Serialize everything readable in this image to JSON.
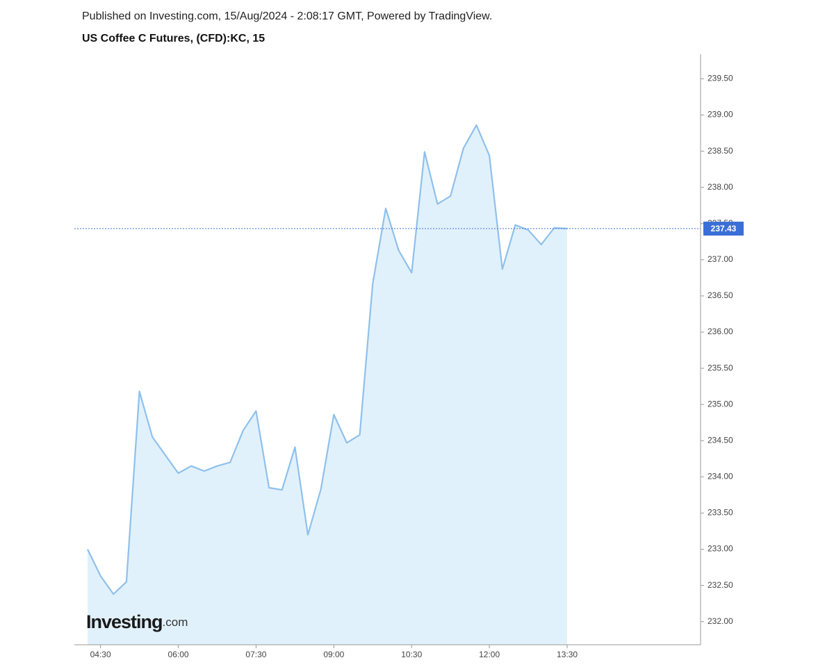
{
  "header": "Published on Investing.com, 15/Aug/2024 - 2:08:17 GMT, Powered by TradingView.",
  "chart_data": {
    "type": "line",
    "title": "US Coffee C Futures, (CFD):KC, 15",
    "logo": "Investing",
    "logo_suffix": ".com",
    "categories": [
      null,
      "04:30",
      null,
      null,
      null,
      null,
      null,
      "06:00",
      null,
      null,
      null,
      null,
      null,
      "07:30",
      null,
      null,
      null,
      null,
      null,
      "09:00",
      null,
      null,
      null,
      null,
      null,
      "10:30",
      null,
      null,
      null,
      null,
      null,
      "12:00",
      null,
      null,
      null,
      null,
      null,
      "13:30"
    ],
    "series": [
      {
        "name": "KC",
        "color": "#8ec0ec",
        "fill": "#e1f1fb",
        "values": [
          233.0,
          232.63,
          232.38,
          232.55,
          235.18,
          234.55,
          234.3,
          234.05,
          234.15,
          234.08,
          234.15,
          234.2,
          234.64,
          234.91,
          233.85,
          233.82,
          234.41,
          233.2,
          233.83,
          234.86,
          234.47,
          234.58,
          236.67,
          237.71,
          237.13,
          236.82,
          238.49,
          237.77,
          237.88,
          238.54,
          238.86,
          238.44,
          236.87,
          237.48,
          237.41,
          237.21,
          237.44,
          237.43
        ]
      }
    ],
    "price_line": {
      "value": 237.43,
      "label": "237.43",
      "color": "#3b6fd8"
    },
    "ylim": [
      231.68,
      239.84
    ],
    "yticks": [
      {
        "value": 232,
        "label": "232.00"
      },
      {
        "value": 232.5,
        "label": "232.50"
      },
      {
        "value": 233,
        "label": "233.00"
      },
      {
        "value": 233.5,
        "label": "233.50"
      },
      {
        "value": 234,
        "label": "234.00"
      },
      {
        "value": 234.5,
        "label": "234.50"
      },
      {
        "value": 235,
        "label": "235.00"
      },
      {
        "value": 235.5,
        "label": "235.50"
      },
      {
        "value": 236,
        "label": "236.00"
      },
      {
        "value": 236.5,
        "label": "236.50"
      },
      {
        "value": 237,
        "label": "237.00"
      },
      {
        "value": 237.5,
        "label": "237.50"
      },
      {
        "value": 238,
        "label": "238.00"
      },
      {
        "value": 238.5,
        "label": "238.50"
      },
      {
        "value": 239,
        "label": "239.00"
      },
      {
        "value": 239.5,
        "label": "239.50"
      }
    ],
    "grid": false
  }
}
